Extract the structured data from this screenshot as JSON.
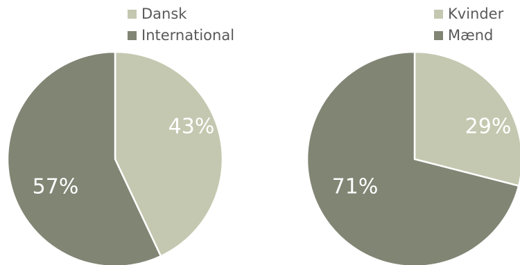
{
  "chart_data": [
    {
      "type": "pie",
      "title": "",
      "categories": [
        "Dansk",
        "International"
      ],
      "values": [
        43,
        57
      ],
      "labels": [
        "43%",
        "57%"
      ],
      "colors": [
        "#c5c8b0",
        "#818574"
      ],
      "legend": "top-right"
    },
    {
      "type": "pie",
      "title": "",
      "categories": [
        "Kvinder",
        "Mænd"
      ],
      "values": [
        29,
        71
      ],
      "labels": [
        "29%",
        "71%"
      ],
      "colors": [
        "#c5c8b0",
        "#818574"
      ],
      "legend": "top-right"
    }
  ]
}
